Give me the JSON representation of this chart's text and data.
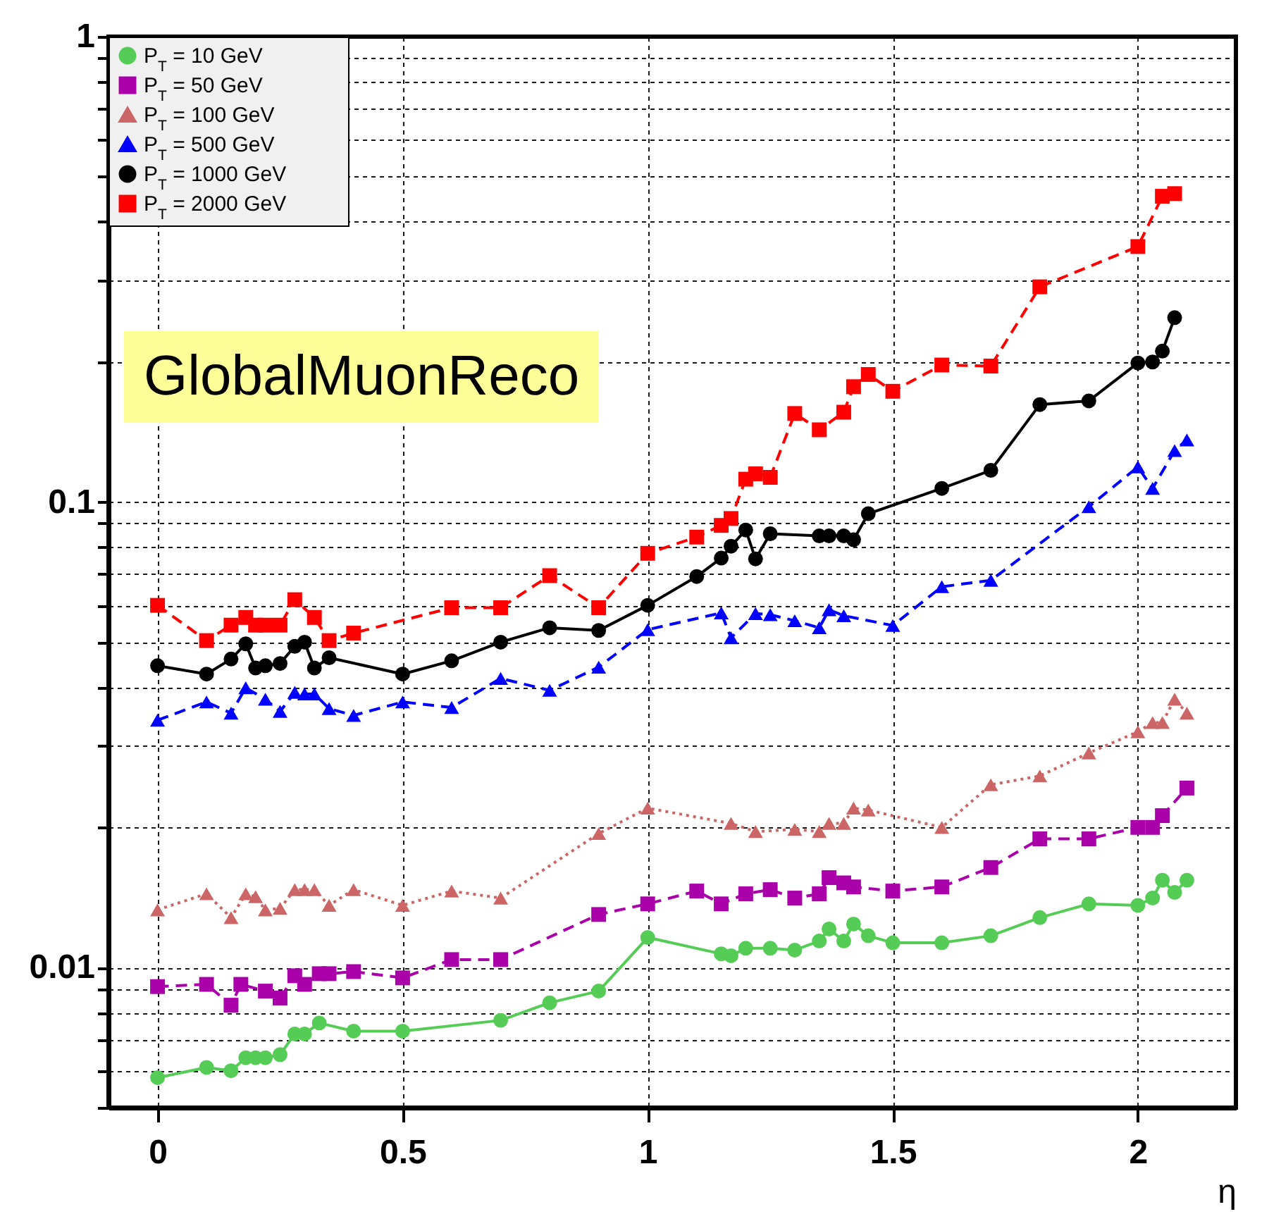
{
  "chart_data": {
    "type": "line",
    "xlabel": "η",
    "annotations": [
      "GlobalMuonReco"
    ],
    "xlim": [
      -0.1,
      2.2
    ],
    "ylim": [
      0.005,
      1
    ],
    "log": "y",
    "grid": true,
    "legend": "top left",
    "xticks": [
      0,
      0.5,
      1,
      1.5,
      2
    ],
    "yticks": [
      {
        "value": 0.005,
        "label": null
      },
      {
        "value": 0.006,
        "label": null
      },
      {
        "value": 0.007,
        "label": null
      },
      {
        "value": 0.008,
        "label": null
      },
      {
        "value": 0.009,
        "label": null
      },
      {
        "value": 0.01,
        "label": "0.01"
      },
      {
        "value": 0.02,
        "label": null
      },
      {
        "value": 0.03,
        "label": null
      },
      {
        "value": 0.04,
        "label": null
      },
      {
        "value": 0.05,
        "label": null
      },
      {
        "value": 0.06,
        "label": null
      },
      {
        "value": 0.07,
        "label": null
      },
      {
        "value": 0.08,
        "label": null
      },
      {
        "value": 0.09,
        "label": null
      },
      {
        "value": 0.1,
        "label": "0.1"
      },
      {
        "value": 0.2,
        "label": null
      },
      {
        "value": 0.3,
        "label": null
      },
      {
        "value": 0.4,
        "label": null
      },
      {
        "value": 0.5,
        "label": null
      },
      {
        "value": 0.6,
        "label": null
      },
      {
        "value": 0.7,
        "label": null
      },
      {
        "value": 0.8,
        "label": null
      },
      {
        "value": 0.9,
        "label": null
      },
      {
        "value": 1,
        "label": "1"
      }
    ],
    "series": [
      {
        "name": "P$_{T}$ = 10 GeV",
        "color": "#55cc55",
        "marker": "circle",
        "line_style": "solid",
        "x": [
          0,
          0.1,
          0.15,
          0.18,
          0.2,
          0.22,
          0.25,
          0.28,
          0.3,
          0.33,
          0.4,
          0.5,
          0.7,
          0.8,
          0.9,
          1.0,
          1.15,
          1.17,
          1.2,
          1.25,
          1.3,
          1.35,
          1.37,
          1.4,
          1.42,
          1.45,
          1.5,
          1.6,
          1.7,
          1.8,
          1.9,
          2.0,
          2.03,
          2.05,
          2.075,
          2.1
        ],
        "values": [
          0.0058,
          0.0061,
          0.006,
          0.0064,
          0.0064,
          0.0064,
          0.0065,
          0.0072,
          0.0072,
          0.0076,
          0.0073,
          0.0073,
          0.0077,
          0.0084,
          0.0089,
          0.0116,
          0.0107,
          0.0106,
          0.011,
          0.011,
          0.0109,
          0.0114,
          0.0121,
          0.0114,
          0.0124,
          0.0117,
          0.0113,
          0.0113,
          0.0117,
          0.0128,
          0.0137,
          0.0136,
          0.0141,
          0.0154,
          0.0145,
          0.0154
        ]
      },
      {
        "name": "P$_{T}$ = 50 GeV",
        "color": "#aa00aa",
        "marker": "square",
        "line_style": "dashed",
        "x": [
          0,
          0.1,
          0.15,
          0.17,
          0.22,
          0.25,
          0.28,
          0.3,
          0.33,
          0.35,
          0.4,
          0.5,
          0.6,
          0.7,
          0.9,
          1.0,
          1.1,
          1.15,
          1.2,
          1.25,
          1.3,
          1.35,
          1.37,
          1.4,
          1.42,
          1.5,
          1.6,
          1.7,
          1.8,
          1.9,
          2.0,
          2.03,
          2.05,
          2.1
        ],
        "values": [
          0.0091,
          0.0092,
          0.0083,
          0.0092,
          0.0089,
          0.0086,
          0.0096,
          0.0092,
          0.0097,
          0.0097,
          0.0098,
          0.0095,
          0.0104,
          0.0104,
          0.013,
          0.0137,
          0.0146,
          0.0137,
          0.0144,
          0.0147,
          0.0141,
          0.0144,
          0.0156,
          0.0152,
          0.0149,
          0.0146,
          0.0149,
          0.0164,
          0.0189,
          0.0189,
          0.02,
          0.02,
          0.0212,
          0.0243
        ]
      },
      {
        "name": "P$_{T}$ = 100 GeV",
        "color": "#cc6666",
        "marker": "triangle",
        "line_style": "dotted",
        "x": [
          0,
          0.1,
          0.15,
          0.18,
          0.2,
          0.22,
          0.25,
          0.28,
          0.3,
          0.32,
          0.35,
          0.4,
          0.5,
          0.6,
          0.7,
          0.9,
          1.0,
          1.17,
          1.22,
          1.3,
          1.35,
          1.37,
          1.4,
          1.42,
          1.45,
          1.6,
          1.7,
          1.8,
          1.9,
          2.0,
          2.03,
          2.05,
          2.075,
          2.1
        ],
        "values": [
          0.0133,
          0.0144,
          0.0128,
          0.0144,
          0.0142,
          0.0133,
          0.0134,
          0.0147,
          0.0147,
          0.0147,
          0.0136,
          0.0147,
          0.0136,
          0.0146,
          0.0141,
          0.0194,
          0.022,
          0.0204,
          0.0196,
          0.0198,
          0.0196,
          0.0204,
          0.0204,
          0.022,
          0.0218,
          0.02,
          0.0247,
          0.0258,
          0.0289,
          0.0321,
          0.0336,
          0.0336,
          0.0377,
          0.0352
        ]
      },
      {
        "name": "P$_{T}$ = 500 GeV",
        "color": "#0000ff",
        "marker": "triangle",
        "line_style": "dashed",
        "x": [
          0,
          0.1,
          0.15,
          0.18,
          0.22,
          0.25,
          0.28,
          0.3,
          0.32,
          0.35,
          0.4,
          0.5,
          0.6,
          0.7,
          0.8,
          0.9,
          1.0,
          1.15,
          1.17,
          1.22,
          1.25,
          1.3,
          1.35,
          1.37,
          1.4,
          1.5,
          1.6,
          1.7,
          1.9,
          2.0,
          2.03,
          2.075,
          2.1
        ],
        "values": [
          0.034,
          0.0372,
          0.0352,
          0.0399,
          0.0377,
          0.0355,
          0.039,
          0.0387,
          0.0387,
          0.036,
          0.0348,
          0.0372,
          0.0362,
          0.0418,
          0.0394,
          0.0442,
          0.0532,
          0.0578,
          0.0511,
          0.0576,
          0.0573,
          0.0556,
          0.0537,
          0.0587,
          0.057,
          0.0543,
          0.0658,
          0.0679,
          0.0977,
          0.119,
          0.107,
          0.129,
          0.136
        ]
      },
      {
        "name": "P$_{T}$ = 1000 GeV",
        "color": "#000000",
        "marker": "circle",
        "line_style": "solid",
        "x": [
          0,
          0.1,
          0.15,
          0.18,
          0.2,
          0.22,
          0.25,
          0.28,
          0.3,
          0.32,
          0.35,
          0.5,
          0.6,
          0.7,
          0.8,
          0.9,
          1.0,
          1.1,
          1.15,
          1.17,
          1.2,
          1.22,
          1.25,
          1.35,
          1.37,
          1.4,
          1.42,
          1.45,
          1.6,
          1.7,
          1.8,
          1.9,
          2.0,
          2.03,
          2.05,
          2.075
        ],
        "values": [
          0.0445,
          0.0427,
          0.046,
          0.0496,
          0.044,
          0.0445,
          0.045,
          0.049,
          0.05,
          0.044,
          0.0463,
          0.0427,
          0.0456,
          0.05,
          0.0537,
          0.053,
          0.06,
          0.0692,
          0.0758,
          0.0804,
          0.0871,
          0.0755,
          0.0855,
          0.0846,
          0.0846,
          0.0846,
          0.083,
          0.0944,
          0.107,
          0.117,
          0.162,
          0.165,
          0.199,
          0.2,
          0.211,
          0.249
        ]
      },
      {
        "name": "P$_{T}$ = 2000 GeV",
        "color": "#ff0000",
        "marker": "square",
        "line_style": "dashed",
        "x": [
          0,
          0.1,
          0.15,
          0.18,
          0.2,
          0.22,
          0.25,
          0.28,
          0.32,
          0.35,
          0.4,
          0.6,
          0.7,
          0.8,
          0.9,
          1.0,
          1.1,
          1.15,
          1.17,
          1.2,
          1.22,
          1.25,
          1.3,
          1.35,
          1.4,
          1.42,
          1.45,
          1.5,
          1.6,
          1.7,
          1.8,
          2.0,
          2.05,
          2.075
        ],
        "values": [
          0.06,
          0.0504,
          0.0544,
          0.0565,
          0.0544,
          0.0544,
          0.0544,
          0.0617,
          0.0565,
          0.0504,
          0.0523,
          0.0593,
          0.0593,
          0.0695,
          0.0593,
          0.0776,
          0.0841,
          0.0891,
          0.0922,
          0.112,
          0.115,
          0.113,
          0.155,
          0.143,
          0.156,
          0.177,
          0.188,
          0.173,
          0.197,
          0.196,
          0.29,
          0.354,
          0.454,
          0.46
        ]
      }
    ]
  }
}
